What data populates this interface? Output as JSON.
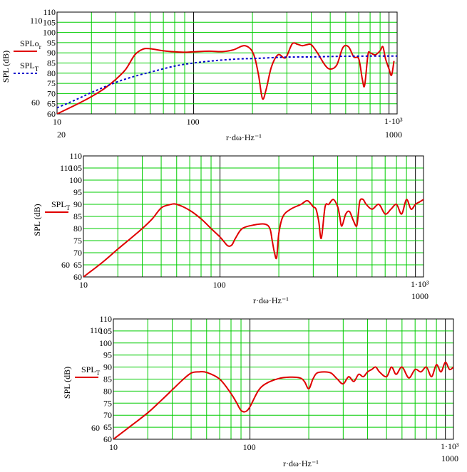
{
  "chart_data": [
    {
      "type": "line",
      "x_scale": "log",
      "xlim": [
        20,
        1100
      ],
      "ylim": [
        60,
        110
      ],
      "yticks": [
        60,
        65,
        70,
        75,
        80,
        85,
        90,
        95,
        100,
        105,
        110
      ],
      "ytick_labels_inner": [
        "60",
        "65",
        "70",
        "75",
        "80",
        "85",
        "90",
        "95",
        "100",
        "105",
        "110"
      ],
      "ylabel_extra": [
        "110",
        "60"
      ],
      "xtick_labels": [
        "10",
        "100",
        "1·10³"
      ],
      "xtick_extra": [
        "20",
        "1000"
      ],
      "xlabel": "r·dω·Hz⁻¹",
      "ylabel": "SPL (dB)",
      "grid": true,
      "legend": [
        {
          "name": "SPLo_r",
          "style": "solid",
          "color": "#e00000"
        },
        {
          "name": "SPL_T",
          "style": "dotted",
          "color": "#0000cc"
        }
      ],
      "series": [
        {
          "name": "SPLo_r",
          "color": "#e00000",
          "style": "solid",
          "x": [
            20,
            25,
            30,
            35,
            40,
            45,
            50,
            55,
            60,
            70,
            80,
            90,
            100,
            120,
            140,
            160,
            180,
            195,
            205,
            215,
            225,
            235,
            250,
            270,
            290,
            300,
            320,
            340,
            360,
            380,
            400,
            430,
            470,
            500,
            540,
            580,
            620,
            660,
            700,
            730,
            750,
            780,
            800,
            850,
            900,
            930,
            960,
            1000,
            1030,
            1060
          ],
          "y": [
            60,
            64.5,
            68.5,
            72.5,
            77,
            82,
            89,
            91.8,
            92,
            91,
            90.5,
            90.3,
            90.5,
            90.8,
            90.6,
            91.5,
            93.5,
            92,
            88,
            79,
            67.5,
            72,
            83,
            89,
            87.5,
            88.5,
            94.5,
            94.2,
            93.5,
            94,
            94,
            90,
            84,
            82,
            84,
            92.5,
            93,
            88,
            87,
            77,
            74,
            89,
            90,
            89,
            91,
            93,
            87,
            82,
            79,
            86
          ]
        },
        {
          "name": "SPL_T",
          "color": "#0000cc",
          "style": "dotted",
          "x": [
            20,
            25,
            30,
            40,
            50,
            60,
            80,
            100,
            130,
            170,
            200,
            250,
            300,
            400,
            500,
            600,
            800,
            1000,
            1100
          ],
          "y": [
            63,
            67,
            70.5,
            75.5,
            78.5,
            80.5,
            83.5,
            85,
            86.2,
            87,
            87.2,
            87.6,
            87.9,
            88,
            88.2,
            88.3,
            88.4,
            88.4,
            88.4
          ]
        }
      ]
    },
    {
      "type": "line",
      "x_scale": "log",
      "xlim": [
        20,
        1100
      ],
      "ylim": [
        60,
        110
      ],
      "yticks": [
        60,
        65,
        70,
        75,
        80,
        85,
        90,
        95,
        100,
        105,
        110
      ],
      "ytick_labels_inner": [
        "60",
        "65",
        "70",
        "75",
        "80",
        "85",
        "90",
        "95",
        "100",
        "105",
        "110"
      ],
      "ylabel_extra": [
        "110",
        "60"
      ],
      "xtick_labels": [
        "10",
        "100",
        "1·10³"
      ],
      "xtick_extra": [
        "1000"
      ],
      "xlabel": "r·dω·Hz⁻¹",
      "ylabel": "SPL (dB)",
      "grid": true,
      "legend": [
        {
          "name": "SPL_T",
          "style": "solid",
          "color": "#e00000"
        }
      ],
      "series": [
        {
          "name": "SPL_T",
          "color": "#e00000",
          "style": "solid",
          "x": [
            20,
            25,
            30,
            35,
            40,
            45,
            50,
            55,
            60,
            70,
            80,
            90,
            100,
            105,
            110,
            115,
            120,
            130,
            150,
            170,
            180,
            185,
            190,
            195,
            200,
            210,
            230,
            260,
            280,
            300,
            310,
            320,
            330,
            345,
            360,
            380,
            400,
            410,
            420,
            440,
            460,
            480,
            500,
            510,
            520,
            540,
            560,
            600,
            650,
            700,
            750,
            800,
            850,
            900,
            950,
            1000,
            1050,
            1100
          ],
          "y": [
            60,
            66,
            71.5,
            76,
            80,
            84,
            88.5,
            89.8,
            90,
            87.5,
            84,
            80,
            76.5,
            74.5,
            72.8,
            73.2,
            76,
            80,
            81.5,
            81.8,
            80,
            75,
            70,
            68,
            78,
            85,
            88,
            90,
            91.5,
            89,
            88,
            83,
            76,
            89,
            90,
            92,
            89,
            85,
            81,
            86,
            87,
            83.5,
            81,
            86,
            91.5,
            92,
            90,
            88,
            90,
            86,
            88,
            90,
            86,
            92,
            88,
            90,
            91,
            92
          ]
        }
      ]
    },
    {
      "type": "line",
      "x_scale": "log",
      "xlim": [
        20,
        1100
      ],
      "ylim": [
        60,
        110
      ],
      "yticks": [
        60,
        65,
        70,
        75,
        80,
        85,
        90,
        95,
        100,
        105,
        110
      ],
      "ytick_labels_inner": [
        "60",
        "65",
        "70",
        "75",
        "80",
        "85",
        "90",
        "95",
        "100",
        "105",
        "110"
      ],
      "ylabel_extra": [
        "110",
        "60"
      ],
      "xtick_labels": [
        "10",
        "100",
        "1·10³"
      ],
      "xtick_extra": [
        "1000"
      ],
      "xlabel": "r·dω·Hz⁻¹",
      "ylabel": "SPL (dB)",
      "grid": true,
      "legend": [
        {
          "name": "SPL_T",
          "style": "solid",
          "color": "#e00000"
        }
      ],
      "series": [
        {
          "name": "SPL_T",
          "color": "#e00000",
          "style": "solid",
          "x": [
            20,
            25,
            30,
            35,
            40,
            45,
            50,
            55,
            60,
            70,
            80,
            85,
            90,
            95,
            100,
            110,
            120,
            140,
            160,
            180,
            190,
            200,
            210,
            220,
            240,
            260,
            280,
            300,
            320,
            340,
            360,
            380,
            400,
            420,
            440,
            460,
            500,
            530,
            560,
            600,
            650,
            700,
            750,
            800,
            850,
            900,
            950,
            1000,
            1050,
            1100
          ],
          "y": [
            60,
            66,
            71,
            76,
            80.5,
            84.5,
            87.5,
            88,
            87.8,
            85,
            79,
            75.5,
            72,
            71.5,
            73.5,
            80,
            83,
            85.2,
            85.8,
            85.5,
            84,
            81,
            85,
            87.5,
            88,
            87.5,
            85,
            83,
            86,
            84,
            87,
            86,
            88,
            89,
            90,
            88,
            86,
            90,
            87,
            90,
            85.5,
            89,
            88,
            90,
            86,
            91,
            88,
            92,
            89,
            90
          ]
        }
      ]
    }
  ]
}
